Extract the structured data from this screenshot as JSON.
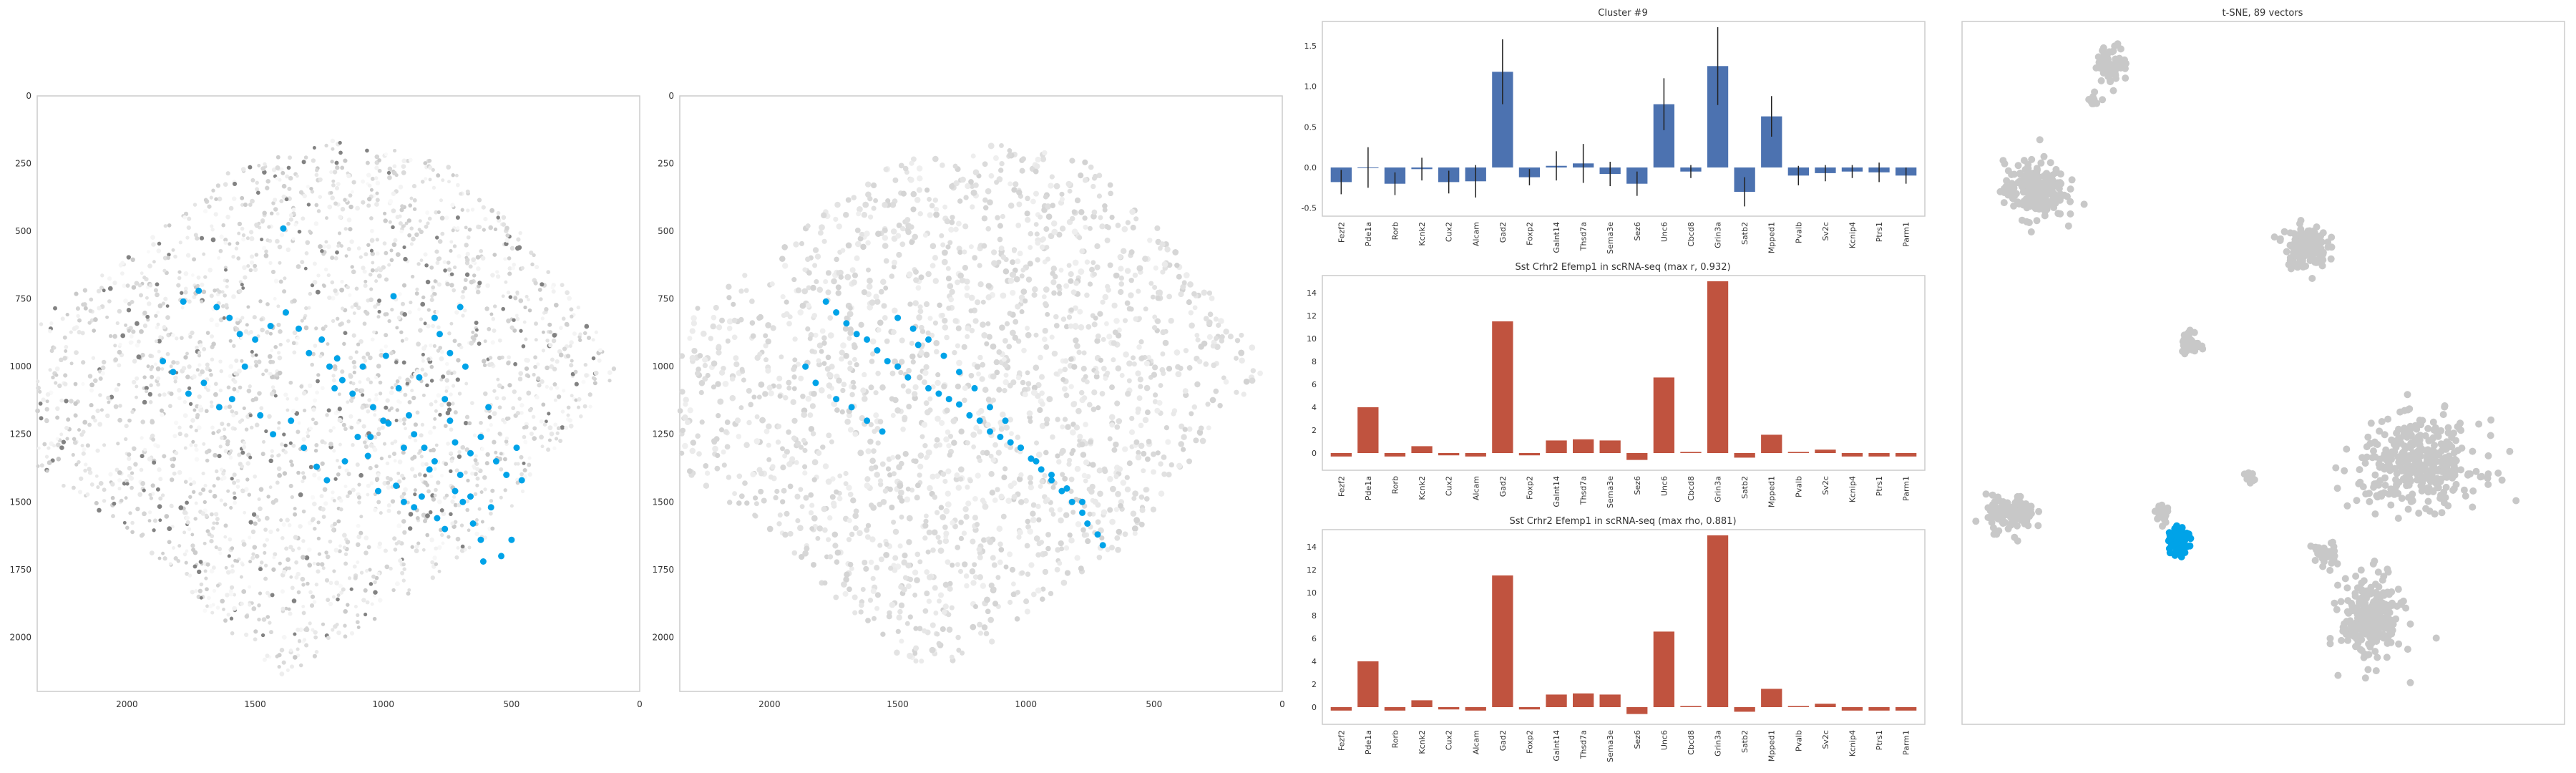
{
  "colors": {
    "cluster_blue": "#00a3e8",
    "bar_blue": "#4c72b0",
    "bar_red": "#c0533f",
    "gray_dot": "#c8c8c8",
    "axis": "#cccccc"
  },
  "chart_data": [
    {
      "type": "scatter",
      "title": "",
      "xlim": [
        2350,
        0
      ],
      "ylim": [
        2200,
        0
      ],
      "xticks": [
        "2000",
        "1500",
        "1000",
        "500",
        "0"
      ],
      "yticks": [
        "0",
        "250",
        "500",
        "750",
        "1000",
        "1250",
        "1500",
        "1750",
        "2000"
      ],
      "series": [
        {
          "color": "#00a3e8",
          "x": [
            1390,
            1780,
            1720,
            1650,
            1600,
            1560,
            1500,
            1440,
            1380,
            1330,
            1290,
            1240,
            1210,
            1180,
            1160,
            1120,
            1080,
            1040,
            1000,
            960,
            940,
            900,
            880,
            840,
            800,
            780,
            760,
            740,
            720,
            700,
            680,
            660,
            620,
            590,
            560,
            520,
            480,
            1860,
            1820,
            1760,
            1700,
            1640,
            1590,
            1540,
            1480,
            1430,
            1360,
            1310,
            1260,
            1220,
            1190,
            1150,
            1100,
            1060,
            1020,
            990,
            950,
            920,
            880,
            850,
            820,
            790,
            760,
            720,
            690,
            650,
            620,
            580,
            540,
            500,
            460,
            1050,
            980,
            920,
            860,
            800,
            740,
            700,
            660,
            610
          ],
          "y": [
            490,
            760,
            720,
            780,
            820,
            880,
            900,
            850,
            800,
            860,
            950,
            900,
            1000,
            970,
            1050,
            1100,
            1000,
            1150,
            1200,
            740,
            1080,
            1180,
            1250,
            1300,
            1350,
            880,
            1120,
            1200,
            1280,
            1400,
            1000,
            1320,
            1260,
            1150,
            1350,
            1400,
            1300,
            980,
            1020,
            1100,
            1060,
            1150,
            1120,
            1000,
            1180,
            1250,
            1200,
            1300,
            1370,
            1420,
            1080,
            1350,
            1260,
            1330,
            1460,
            960,
            1440,
            1500,
            1520,
            1480,
            1380,
            1560,
            1600,
            1460,
            1500,
            1580,
            1640,
            1520,
            1700,
            1640,
            1420,
            1260,
            1210,
            1300,
            1040,
            820,
            950,
            780,
            1480,
            1720
          ]
        }
      ]
    },
    {
      "type": "scatter",
      "title": "",
      "xlim": [
        2350,
        0
      ],
      "ylim": [
        2200,
        0
      ],
      "xticks": [
        "2000",
        "1500",
        "1000",
        "500",
        "0"
      ],
      "yticks": [
        "0",
        "250",
        "500",
        "750",
        "1000",
        "1250",
        "1500",
        "1750",
        "2000"
      ],
      "series": [
        {
          "color": "#00a3e8",
          "x": [
            1780,
            1740,
            1700,
            1660,
            1620,
            1580,
            1540,
            1500,
            1460,
            1420,
            1380,
            1340,
            1300,
            1260,
            1220,
            1180,
            1140,
            1100,
            1060,
            1020,
            980,
            940,
            900,
            860,
            820,
            780,
            760,
            720,
            700,
            1860,
            1820,
            1740,
            1680,
            1620,
            1560,
            1500,
            1440,
            1380,
            1320,
            1260,
            1200,
            1140,
            1080,
            1020,
            960,
            900,
            840,
            780
          ],
          "y": [
            760,
            800,
            840,
            880,
            900,
            940,
            980,
            1000,
            1040,
            920,
            1080,
            1100,
            1120,
            1140,
            1180,
            1200,
            1240,
            1260,
            1280,
            1300,
            1340,
            1380,
            1420,
            1460,
            1500,
            1540,
            1580,
            1620,
            1660,
            1000,
            1060,
            1120,
            1150,
            1200,
            1240,
            820,
            860,
            900,
            960,
            1020,
            1080,
            1150,
            1200,
            1300,
            1350,
            1400,
            1450,
            1500
          ]
        }
      ]
    },
    {
      "type": "bar",
      "title": "Cluster #9",
      "categories": [
        "Fezf2",
        "Pde1a",
        "Rorb",
        "Kcnk2",
        "Cux2",
        "Alcam",
        "Gad2",
        "Foxp2",
        "Galnt14",
        "Thsd7a",
        "Sema3e",
        "Sez6",
        "Unc6",
        "Cbcd8",
        "Grin3a",
        "Satb2",
        "Mpped1",
        "Pvalb",
        "Sv2c",
        "Kcnip4",
        "Ptrs1",
        "Parm1"
      ],
      "values": [
        -0.18,
        0.0,
        -0.2,
        -0.02,
        -0.18,
        -0.17,
        1.18,
        -0.12,
        0.02,
        0.05,
        -0.08,
        -0.2,
        0.78,
        -0.05,
        1.25,
        -0.3,
        0.63,
        -0.1,
        -0.07,
        -0.05,
        -0.06,
        -0.1
      ],
      "errors": [
        0.15,
        0.25,
        0.14,
        0.14,
        0.14,
        0.2,
        0.4,
        0.1,
        0.18,
        0.24,
        0.15,
        0.15,
        0.32,
        0.08,
        0.48,
        0.18,
        0.25,
        0.12,
        0.1,
        0.08,
        0.12,
        0.1
      ],
      "ylim": [
        -0.6,
        1.8
      ],
      "yticks": [
        "-0.5",
        "0.0",
        "0.5",
        "1.0",
        "1.5"
      ],
      "color": "#4c72b0",
      "grid": false
    },
    {
      "type": "bar",
      "title": "Sst Crhr2 Efemp1 in scRNA-seq (max r, 0.932)",
      "categories": [
        "Fezf2",
        "Pde1a",
        "Rorb",
        "Kcnk2",
        "Cux2",
        "Alcam",
        "Gad2",
        "Foxp2",
        "Galnt14",
        "Thsd7a",
        "Sema3e",
        "Sez6",
        "Unc6",
        "Cbcd8",
        "Grin3a",
        "Satb2",
        "Mpped1",
        "Pvalb",
        "Sv2c",
        "Kcnip4",
        "Ptrs1",
        "Parm1"
      ],
      "values": [
        -0.3,
        4.0,
        -0.3,
        0.6,
        -0.2,
        -0.3,
        11.5,
        -0.2,
        1.1,
        1.2,
        1.1,
        -0.6,
        6.6,
        0.1,
        15.0,
        -0.4,
        1.6,
        0.1,
        0.3,
        -0.3,
        -0.3,
        -0.3
      ],
      "ylim": [
        -1.5,
        15.5
      ],
      "yticks": [
        "0",
        "2",
        "4",
        "6",
        "8",
        "10",
        "12",
        "14"
      ],
      "color": "#c0533f",
      "grid": false
    },
    {
      "type": "bar",
      "title": "Sst Crhr2 Efemp1 in scRNA-seq (max rho, 0.881)",
      "categories": [
        "Fezf2",
        "Pde1a",
        "Rorb",
        "Kcnk2",
        "Cux2",
        "Alcam",
        "Gad2",
        "Foxp2",
        "Galnt14",
        "Thsd7a",
        "Sema3e",
        "Sez6",
        "Unc6",
        "Cbcd8",
        "Grin3a",
        "Satb2",
        "Mpped1",
        "Pvalb",
        "Sv2c",
        "Kcnip4",
        "Ptrs1",
        "Parm1"
      ],
      "values": [
        -0.3,
        4.0,
        -0.3,
        0.6,
        -0.2,
        -0.3,
        11.5,
        -0.2,
        1.1,
        1.2,
        1.1,
        -0.6,
        6.6,
        0.1,
        15.0,
        -0.4,
        1.6,
        0.1,
        0.3,
        -0.3,
        -0.3,
        -0.3
      ],
      "ylim": [
        -1.5,
        15.5
      ],
      "yticks": [
        "0",
        "2",
        "4",
        "6",
        "8",
        "10",
        "12",
        "14"
      ],
      "color": "#c0533f",
      "grid": false
    },
    {
      "type": "scatter",
      "title": "t-SNE, 89 vectors",
      "xlim": [
        0,
        100
      ],
      "ylim": [
        0,
        100
      ],
      "grid": false,
      "series": [
        {
          "color": "#c8c8c8",
          "clusters": [
            {
              "x": 12,
              "y": 76,
              "rx": 5,
              "ry": 4,
              "n": 240
            },
            {
              "x": 25,
              "y": 94,
              "rx": 2.5,
              "ry": 2.5,
              "n": 70
            },
            {
              "x": 22,
              "y": 89,
              "rx": 1,
              "ry": 1,
              "n": 10
            },
            {
              "x": 57,
              "y": 68,
              "rx": 3.5,
              "ry": 3,
              "n": 150
            },
            {
              "x": 38,
              "y": 54,
              "rx": 1.5,
              "ry": 2,
              "n": 35
            },
            {
              "x": 8,
              "y": 30,
              "rx": 4,
              "ry": 2.5,
              "n": 120
            },
            {
              "x": 76,
              "y": 37,
              "rx": 10,
              "ry": 6,
              "n": 380
            },
            {
              "x": 68,
              "y": 15,
              "rx": 5,
              "ry": 6,
              "n": 260
            },
            {
              "x": 33,
              "y": 30,
              "rx": 1.2,
              "ry": 1.5,
              "n": 20
            },
            {
              "x": 48,
              "y": 35,
              "rx": 1,
              "ry": 1,
              "n": 15
            },
            {
              "x": 60,
              "y": 24,
              "rx": 2,
              "ry": 2,
              "n": 40
            }
          ]
        },
        {
          "color": "#00a3e8",
          "clusters": [
            {
              "x": 36,
              "y": 26,
              "rx": 1.5,
              "ry": 1.8,
              "n": 89
            }
          ]
        }
      ]
    }
  ]
}
